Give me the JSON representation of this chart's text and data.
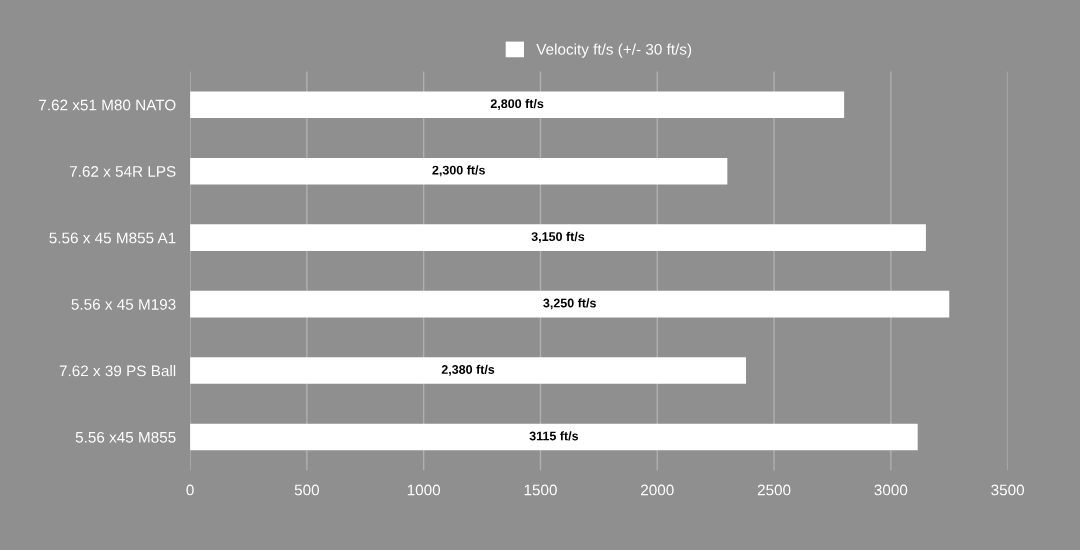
{
  "chart_data": {
    "type": "bar",
    "orientation": "horizontal",
    "categories": [
      "7.62 x51 M80 NATO",
      "7.62 x 54R LPS",
      "5.56 x 45 M855 A1",
      "5.56 x 45 M193",
      "7.62 x 39 PS Ball",
      "5.56 x45 M855"
    ],
    "series": [
      {
        "name": "Velocity ft/s (+/- 30 ft/s)",
        "color": "#ffffff",
        "values": [
          2800,
          2300,
          3150,
          3250,
          2380,
          3115
        ],
        "value_labels": [
          "2,800 ft/s",
          "2,300 ft/s",
          "3,150 ft/s",
          "3,250 ft/s",
          "2,380 ft/s",
          "3115 ft/s"
        ]
      }
    ],
    "xlim": [
      0,
      3500
    ],
    "xticks": [
      0,
      500,
      1000,
      1500,
      2000,
      2500,
      3000,
      3500
    ],
    "grid": "x",
    "legend": "top"
  }
}
